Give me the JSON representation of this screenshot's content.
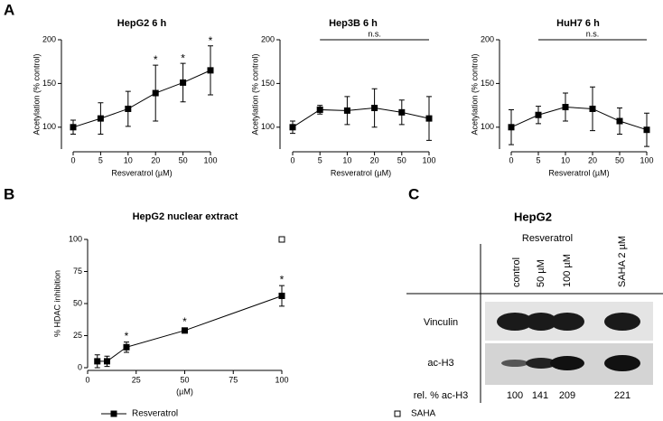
{
  "panel_labels": [
    "A",
    "B",
    "C"
  ],
  "chart_data": [
    {
      "type": "line",
      "title": "HepG2 6 h",
      "xlabel": "Resveratrol (µM)",
      "ylabel": "Acetylation (% control)",
      "categories": [
        "0",
        "5",
        "10",
        "20",
        "50",
        "100"
      ],
      "values": [
        100,
        110,
        121,
        139,
        151,
        165
      ],
      "errors": [
        8,
        18,
        20,
        32,
        22,
        28
      ],
      "significance": [
        null,
        null,
        null,
        "*",
        "*",
        "*"
      ],
      "color": "#000000",
      "ylim": [
        75,
        200
      ],
      "yticks": [
        100,
        150,
        200
      ]
    },
    {
      "type": "line",
      "title": "Hep3B 6 h",
      "xlabel": "Resveratrol (µM)",
      "ylabel": "Acetylation (% control)",
      "categories": [
        "0",
        "5",
        "10",
        "20",
        "50",
        "100"
      ],
      "values": [
        100,
        120,
        119,
        122,
        117,
        110
      ],
      "errors": [
        7,
        5,
        16,
        22,
        14,
        25
      ],
      "bracket": {
        "text": "n.s.",
        "categories": [
          "5",
          "100"
        ]
      },
      "color": "#000000",
      "ylim": [
        75,
        200
      ],
      "yticks": [
        100,
        150,
        200
      ]
    },
    {
      "type": "line",
      "title": "HuH7 6 h",
      "xlabel": "Resveratrol (µM)",
      "ylabel": "Acetylation (% control)",
      "categories": [
        "0",
        "5",
        "10",
        "20",
        "50",
        "100"
      ],
      "values": [
        100,
        114,
        123,
        121,
        107,
        97
      ],
      "errors": [
        20,
        10,
        16,
        25,
        15,
        19
      ],
      "bracket": {
        "text": "n.s.",
        "categories": [
          "5",
          "100"
        ]
      },
      "color": "#000000",
      "ylim": [
        75,
        200
      ],
      "yticks": [
        100,
        150,
        200
      ]
    },
    {
      "type": "scatter",
      "title": "HepG2 nuclear extract",
      "xlabel": "(µM)",
      "ylabel": "% HDAC inhibition",
      "xlim": [
        0,
        100
      ],
      "xticks": [
        0,
        25,
        50,
        75,
        100
      ],
      "ylim": [
        0,
        100
      ],
      "yticks": [
        0,
        25,
        50,
        75,
        100
      ],
      "legend": "bottom",
      "series": [
        {
          "name": "Resveratrol",
          "color": "#000000",
          "marker": "filled-square",
          "connect": true,
          "x": [
            5,
            10,
            20,
            50,
            100
          ],
          "values": [
            5,
            5,
            16,
            29,
            56
          ],
          "errors": [
            5,
            4,
            4,
            2,
            8
          ],
          "significance": [
            null,
            null,
            "*",
            "*",
            "*"
          ]
        },
        {
          "name": "SAHA",
          "color": "#000000",
          "marker": "open-square",
          "connect": false,
          "x": [
            100
          ],
          "values": [
            100
          ]
        }
      ]
    }
  ],
  "blot": {
    "title": "HepG2",
    "group_label": "Resveratrol",
    "lanes": [
      "control",
      "50 µM",
      "100 µM",
      "SAHA 2 µM"
    ],
    "rows": [
      "Vinculin",
      "ac-H3"
    ],
    "quant_label": "rel. % ac-H3",
    "quant": [
      100,
      141,
      209,
      221
    ]
  }
}
